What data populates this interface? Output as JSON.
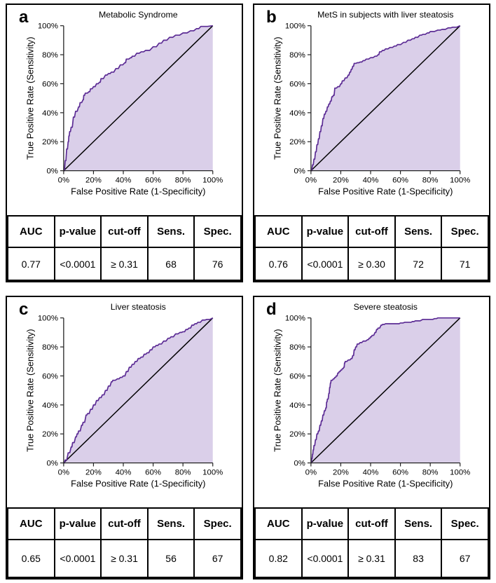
{
  "colors": {
    "curve": "#5B2B94",
    "fill": "#DACFE9",
    "diagonal": "#000000",
    "axis": "#222222",
    "border": "#000000"
  },
  "shared": {
    "x_label": "False Positive Rate (1-Specificity)",
    "y_label": "True Positive Rate (Sensitivity)",
    "tick_labels": [
      "0%",
      "20%",
      "40%",
      "60%",
      "80%",
      "100%"
    ],
    "table_headers": [
      "AUC",
      "p-value",
      "cut-off",
      "Sens.",
      "Spec."
    ]
  },
  "panels": [
    {
      "letter": "a"
    },
    {
      "letter": "b"
    },
    {
      "letter": "c"
    },
    {
      "letter": "d"
    }
  ],
  "chart_data": [
    {
      "type": "line",
      "title": "Metabolic Syndrome",
      "xlabel": "False Positive Rate (1-Specificity)",
      "ylabel": "True Positive Rate (Sensitivity)",
      "xlim": [
        0,
        100
      ],
      "ylim": [
        0,
        100
      ],
      "x_tick_labels": [
        "0%",
        "20%",
        "40%",
        "60%",
        "80%",
        "100%"
      ],
      "y_tick_labels": [
        "0%",
        "20%",
        "40%",
        "60%",
        "80%",
        "100%"
      ],
      "stats": {
        "auc": "0.77",
        "p_value": "<0.0001",
        "cut_off": "≥ 0.31",
        "sens": "68",
        "spec": "76"
      },
      "series": [
        {
          "name": "ROC curve",
          "points": [
            [
              0,
              0
            ],
            [
              1,
              7
            ],
            [
              2,
              15
            ],
            [
              3,
              20
            ],
            [
              3.5,
              24
            ],
            [
              4,
              27
            ],
            [
              5,
              30
            ],
            [
              6.5,
              37
            ],
            [
              8,
              41
            ],
            [
              10,
              44
            ],
            [
              11,
              47
            ],
            [
              13,
              49
            ],
            [
              13.5,
              52
            ],
            [
              14.5,
              53.5
            ],
            [
              17,
              54.5
            ],
            [
              18,
              56.5
            ],
            [
              20,
              58
            ],
            [
              22,
              60
            ],
            [
              24,
              61
            ],
            [
              25,
              63.5
            ],
            [
              28,
              66
            ],
            [
              30,
              67
            ],
            [
              32,
              68
            ],
            [
              35,
              70.5
            ],
            [
              38,
              73
            ],
            [
              41,
              74.5
            ],
            [
              42,
              77
            ],
            [
              45,
              78
            ],
            [
              46,
              79
            ],
            [
              49,
              81
            ],
            [
              52,
              82
            ],
            [
              55,
              83
            ],
            [
              60,
              85.5
            ],
            [
              64,
              88
            ],
            [
              67,
              90
            ],
            [
              71,
              92
            ],
            [
              75,
              93.5
            ],
            [
              80,
              95
            ],
            [
              85,
              96.5
            ],
            [
              89,
              98
            ],
            [
              92,
              99.5
            ],
            [
              100,
              100
            ]
          ]
        },
        {
          "name": "Reference diagonal",
          "points": [
            [
              0,
              0
            ],
            [
              100,
              100
            ]
          ]
        }
      ]
    },
    {
      "type": "line",
      "title": "MetS in subjects with liver steatosis",
      "xlabel": "False Positive Rate (1-Specificity)",
      "ylabel": "True Positive Rate (Sensitivity)",
      "xlim": [
        0,
        100
      ],
      "ylim": [
        0,
        100
      ],
      "x_tick_labels": [
        "0%",
        "20%",
        "40%",
        "60%",
        "80%",
        "100%"
      ],
      "y_tick_labels": [
        "0%",
        "20%",
        "40%",
        "60%",
        "80%",
        "100%"
      ],
      "stats": {
        "auc": "0.76",
        "p_value": "<0.0001",
        "cut_off": "≥ 0.30",
        "sens": "72",
        "spec": "71"
      },
      "series": [
        {
          "name": "ROC curve",
          "points": [
            [
              0,
              0
            ],
            [
              1,
              4
            ],
            [
              2,
              8
            ],
            [
              3,
              13
            ],
            [
              4,
              18
            ],
            [
              5,
              22
            ],
            [
              6,
              27
            ],
            [
              7,
              31
            ],
            [
              8,
              36
            ],
            [
              9,
              39
            ],
            [
              10,
              41
            ],
            [
              11,
              44
            ],
            [
              12,
              46
            ],
            [
              13,
              48
            ],
            [
              14,
              51
            ],
            [
              15,
              52
            ],
            [
              16,
              57
            ],
            [
              18,
              58
            ],
            [
              20,
              60
            ],
            [
              21,
              62
            ],
            [
              23,
              64
            ],
            [
              25,
              66
            ],
            [
              26,
              68
            ],
            [
              27,
              70
            ],
            [
              28,
              72
            ],
            [
              29,
              74
            ],
            [
              31,
              74.5
            ],
            [
              33,
              75
            ],
            [
              35,
              76
            ],
            [
              37,
              77
            ],
            [
              40,
              78
            ],
            [
              43,
              79
            ],
            [
              45,
              80
            ],
            [
              46,
              82
            ],
            [
              48,
              83
            ],
            [
              50,
              84
            ],
            [
              53,
              85
            ],
            [
              56,
              86
            ],
            [
              58,
              87
            ],
            [
              62,
              88.5
            ],
            [
              65,
              90
            ],
            [
              68,
              91
            ],
            [
              70,
              92
            ],
            [
              73,
              93.5
            ],
            [
              75,
              94
            ],
            [
              78,
              95
            ],
            [
              80,
              96
            ],
            [
              85,
              97
            ],
            [
              88,
              97.5
            ],
            [
              92,
              98.5
            ],
            [
              95,
              99
            ],
            [
              100,
              100
            ]
          ]
        },
        {
          "name": "Reference diagonal",
          "points": [
            [
              0,
              0
            ],
            [
              100,
              100
            ]
          ]
        }
      ]
    },
    {
      "type": "line",
      "title": "Liver steatosis",
      "xlabel": "False Positive Rate (1-Specificity)",
      "ylabel": "True Positive Rate (Sensitivity)",
      "xlim": [
        0,
        100
      ],
      "ylim": [
        0,
        100
      ],
      "x_tick_labels": [
        "0%",
        "20%",
        "40%",
        "60%",
        "80%",
        "100%"
      ],
      "y_tick_labels": [
        "0%",
        "20%",
        "40%",
        "60%",
        "80%",
        "100%"
      ],
      "stats": {
        "auc": "0.65",
        "p_value": "<0.0001",
        "cut_off": "≥ 0.31",
        "sens": "56",
        "spec": "67"
      },
      "series": [
        {
          "name": "ROC curve",
          "points": [
            [
              0,
              0
            ],
            [
              1,
              2
            ],
            [
              3,
              7
            ],
            [
              5,
              11
            ],
            [
              6,
              14
            ],
            [
              8,
              18
            ],
            [
              9,
              20
            ],
            [
              10,
              22
            ],
            [
              12,
              26
            ],
            [
              13,
              28
            ],
            [
              15,
              33
            ],
            [
              16,
              34
            ],
            [
              18,
              37
            ],
            [
              20,
              40
            ],
            [
              22,
              43
            ],
            [
              24,
              45
            ],
            [
              26,
              47
            ],
            [
              28,
              50
            ],
            [
              30,
              53
            ],
            [
              32,
              56
            ],
            [
              33,
              57
            ],
            [
              36,
              58
            ],
            [
              38,
              59
            ],
            [
              40,
              60
            ],
            [
              42,
              63
            ],
            [
              44,
              66
            ],
            [
              46,
              68
            ],
            [
              48,
              70
            ],
            [
              50,
              72
            ],
            [
              52,
              73
            ],
            [
              54,
              75
            ],
            [
              56,
              76
            ],
            [
              58,
              78
            ],
            [
              60,
              80
            ],
            [
              62,
              81
            ],
            [
              64,
              82
            ],
            [
              67,
              84
            ],
            [
              70,
              86
            ],
            [
              72,
              87
            ],
            [
              75,
              89
            ],
            [
              78,
              90
            ],
            [
              80,
              90.5
            ],
            [
              82,
              92
            ],
            [
              84,
              93
            ],
            [
              86,
              95
            ],
            [
              88,
              96
            ],
            [
              90,
              97
            ],
            [
              93,
              98.5
            ],
            [
              96,
              99
            ],
            [
              100,
              100
            ]
          ]
        },
        {
          "name": "Reference diagonal",
          "points": [
            [
              0,
              0
            ],
            [
              100,
              100
            ]
          ]
        }
      ]
    },
    {
      "type": "line",
      "title": "Severe steatosis",
      "xlabel": "False Positive Rate (1-Specificity)",
      "ylabel": "True Positive Rate (Sensitivity)",
      "xlim": [
        0,
        100
      ],
      "ylim": [
        0,
        100
      ],
      "x_tick_labels": [
        "0%",
        "20%",
        "40%",
        "60%",
        "80%",
        "100%"
      ],
      "y_tick_labels": [
        "0%",
        "20%",
        "40%",
        "60%",
        "80%",
        "100%"
      ],
      "stats": {
        "auc": "0.82",
        "p_value": "<0.0001",
        "cut_off": "≥ 0.31",
        "sens": "83",
        "spec": "67"
      },
      "series": [
        {
          "name": "ROC curve",
          "points": [
            [
              0,
              0
            ],
            [
              0.5,
              3
            ],
            [
              1,
              6
            ],
            [
              1.5,
              9
            ],
            [
              2,
              12
            ],
            [
              3,
              16
            ],
            [
              4,
              20
            ],
            [
              5,
              22
            ],
            [
              6,
              26
            ],
            [
              7,
              29
            ],
            [
              8,
              33
            ],
            [
              9,
              36
            ],
            [
              10,
              38
            ],
            [
              10.5,
              42
            ],
            [
              11,
              44
            ],
            [
              12,
              48
            ],
            [
              12.5,
              52
            ],
            [
              13,
              55
            ],
            [
              13.5,
              57
            ],
            [
              15,
              58
            ],
            [
              16,
              59
            ],
            [
              17,
              60
            ],
            [
              18,
              62
            ],
            [
              19,
              63
            ],
            [
              20,
              64
            ],
            [
              21,
              65
            ],
            [
              22,
              66
            ],
            [
              22.5,
              69
            ],
            [
              23,
              70
            ],
            [
              25,
              71
            ],
            [
              27,
              72
            ],
            [
              28,
              74
            ],
            [
              29,
              78
            ],
            [
              30,
              80
            ],
            [
              31,
              82
            ],
            [
              33,
              83
            ],
            [
              35,
              84
            ],
            [
              38,
              85
            ],
            [
              39,
              86
            ],
            [
              40,
              87
            ],
            [
              41,
              88
            ],
            [
              43,
              90
            ],
            [
              44,
              92
            ],
            [
              45,
              93
            ],
            [
              47,
              95
            ],
            [
              48,
              95.5
            ],
            [
              50,
              96
            ],
            [
              55,
              96
            ],
            [
              58,
              96
            ],
            [
              60,
              96.5
            ],
            [
              63,
              97
            ],
            [
              66,
              97
            ],
            [
              68,
              97.5
            ],
            [
              70,
              98
            ],
            [
              71,
              98
            ],
            [
              75,
              99
            ],
            [
              80,
              99
            ],
            [
              83,
              99.5
            ],
            [
              85,
              100
            ],
            [
              90,
              100
            ],
            [
              95,
              100
            ],
            [
              100,
              100
            ]
          ]
        },
        {
          "name": "Reference diagonal",
          "points": [
            [
              0,
              0
            ],
            [
              100,
              100
            ]
          ]
        }
      ]
    }
  ]
}
